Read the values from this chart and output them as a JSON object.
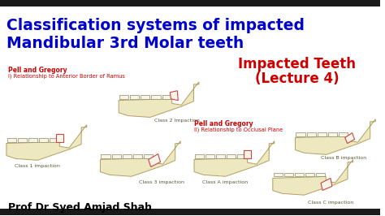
{
  "bg_color": "#ffffff",
  "title_line1": "Classification systems of impacted",
  "title_line2": "Mandibular 3rd Molar teeth",
  "title_color": "#0000cc",
  "title_fontsize": 13.5,
  "subtitle_line1": "Impacted Teeth",
  "subtitle_line2": "(Lecture 4)",
  "subtitle_color": "#cc0000",
  "subtitle_fontsize": 12,
  "pg1_title": "Pell and Gregory",
  "pg1_sub": "I) Relationship to Anterior Border of Ramus",
  "pg2_title": "Pell and Gregory",
  "pg2_sub": "II) Relationship to Occlusal Plane",
  "pg_color": "#cc0000",
  "pg_title_fontsize": 5.5,
  "pg_sub_fontsize": 4.8,
  "jaw_fill": "#ede8c0",
  "jaw_edge": "#b0a060",
  "tooth_fill": "#f8f5e8",
  "tooth_edge": "#888860",
  "imp_tooth_edge": "#cc4444",
  "class_labels": [
    "Class 1 impaction",
    "Class 2 impaction",
    "Class 3 impaction",
    "Class A impaction",
    "Class B impaction",
    "Class C impaction"
  ],
  "class_color": "#555533",
  "class_fontsize": 4.5,
  "author": "Prof Dr Syed Amjad Shah",
  "author_color": "#000000",
  "author_fontsize": 9,
  "border_color": "#111111",
  "top_bar_color": "#1a1a1a"
}
